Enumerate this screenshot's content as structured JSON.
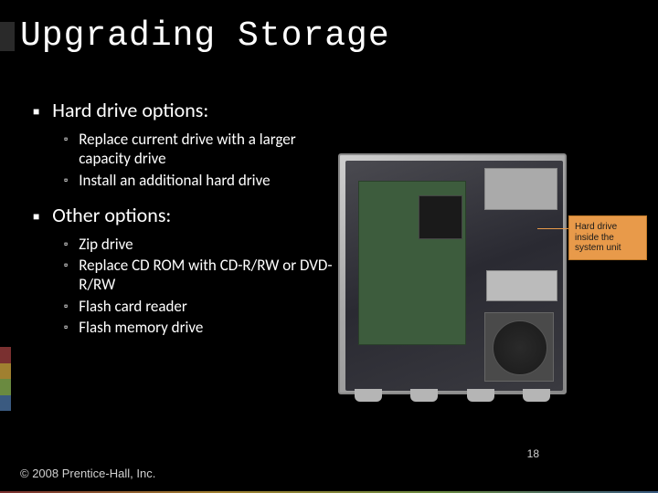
{
  "slide": {
    "title": "Upgrading Storage",
    "title_font": "Consolas",
    "title_fontsize": 38,
    "title_color": "#ffffff",
    "background_color": "#000000",
    "body_fontsize_l1": 22,
    "body_fontsize_l2": 17
  },
  "bullets": [
    {
      "level": 1,
      "text": "Hard drive options:",
      "children": [
        {
          "level": 2,
          "text": "Replace current drive with a larger capacity drive"
        },
        {
          "level": 2,
          "text": "Install an additional hard drive"
        }
      ]
    },
    {
      "level": 1,
      "text": "Other options:",
      "children": [
        {
          "level": 2,
          "text": "Zip drive"
        },
        {
          "level": 2,
          "text": "Replace CD ROM with CD-R/RW or DVD-R/RW"
        },
        {
          "level": 2,
          "text": "Flash card reader"
        },
        {
          "level": 2,
          "text": "Flash memory drive"
        }
      ]
    }
  ],
  "image": {
    "callout_text": "Hard drive inside the system unit",
    "callout_bg": "#e89a4a",
    "callout_text_color": "#1a1a1a",
    "case_outer_color": "#a8a8a8",
    "case_inner_color": "#2a2a32",
    "motherboard_color": "#3d5c3d"
  },
  "accent_stripe_colors": [
    "#7a3030",
    "#a08030",
    "#6a8a40",
    "#3a5a80"
  ],
  "footer": {
    "copyright": "© 2008 Prentice-Hall, Inc.",
    "page_number": "18",
    "font_color": "#d0d0d0",
    "fontsize": 13
  }
}
